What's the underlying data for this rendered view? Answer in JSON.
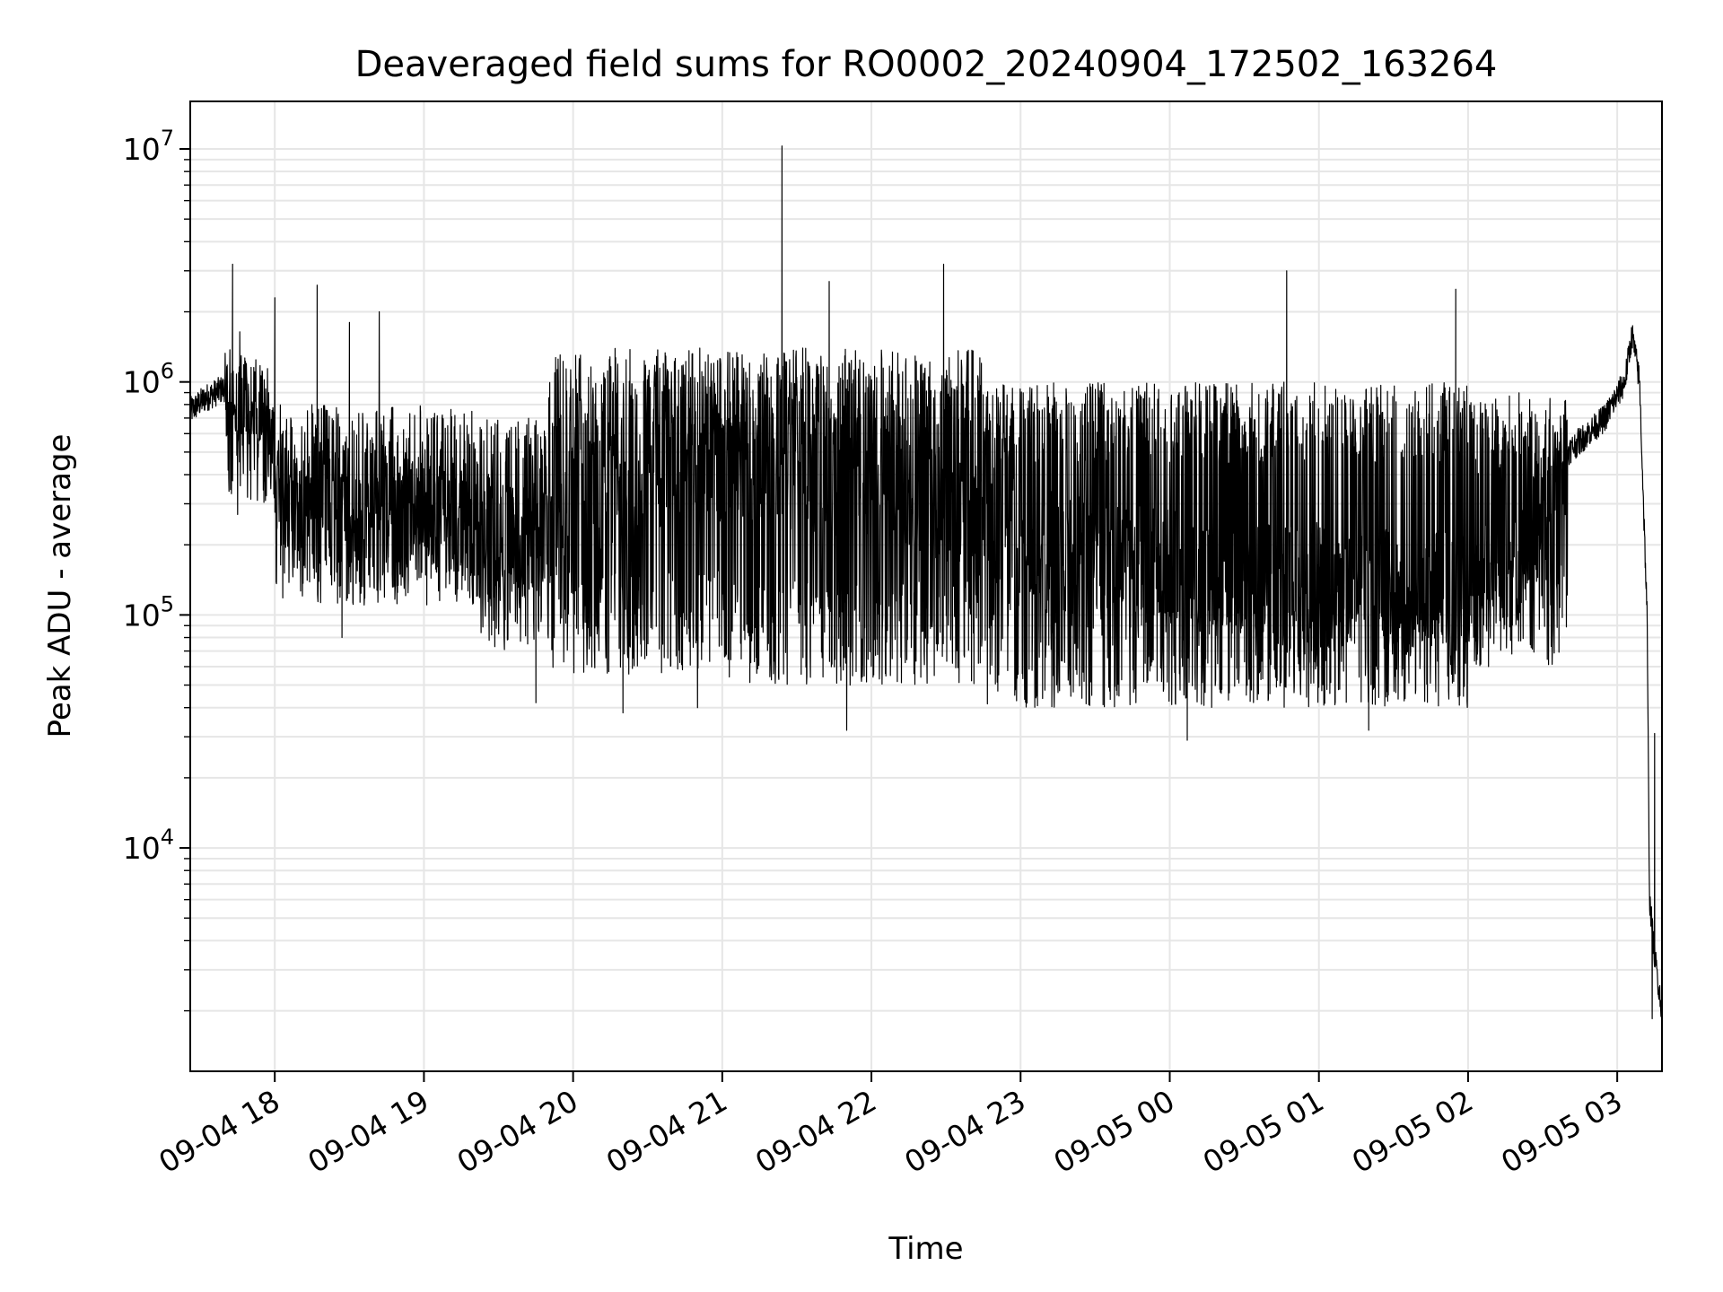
{
  "chart_data": {
    "type": "line",
    "title": "Deaveraged field sums for RO0002_20240904_172502_163264",
    "xlabel": "Time",
    "ylabel": "Peak ADU - average",
    "yscale": "log",
    "ylim": [
      1100,
      16000000
    ],
    "xlim": [
      "09-04 17:26",
      "09-05 03:18"
    ],
    "grid": true,
    "line_color": "#000000",
    "grid_color": "#e6e6e6",
    "x_ticks": [
      {
        "t": "09-04 18:00",
        "label": "09-04 18"
      },
      {
        "t": "09-04 19:00",
        "label": "09-04 19"
      },
      {
        "t": "09-04 20:00",
        "label": "09-04 20"
      },
      {
        "t": "09-04 21:00",
        "label": "09-04 21"
      },
      {
        "t": "09-04 22:00",
        "label": "09-04 22"
      },
      {
        "t": "09-04 23:00",
        "label": "09-04 23"
      },
      {
        "t": "09-05 00:00",
        "label": "09-05 00"
      },
      {
        "t": "09-05 01:00",
        "label": "09-05 01"
      },
      {
        "t": "09-05 02:00",
        "label": "09-05 02"
      },
      {
        "t": "09-05 03:00",
        "label": "09-05 03"
      }
    ],
    "y_ticks": [
      {
        "value": 10000,
        "base": "10",
        "exp": "4"
      },
      {
        "value": 100000,
        "base": "10",
        "exp": "5"
      },
      {
        "value": 1000000,
        "base": "10",
        "exp": "6"
      },
      {
        "value": 10000000,
        "base": "10",
        "exp": "7"
      }
    ],
    "series": [
      {
        "points": [
          [
            "09-04 17:26",
            750000
          ],
          [
            "09-04 17:32",
            850000
          ],
          [
            "09-04 17:38",
            920000
          ],
          [
            "09-04 17:44",
            1000000
          ],
          [
            "09-04 17:50",
            850000
          ],
          [
            "09-04 17:56",
            550000
          ],
          [
            "09-04 18:02",
            350000
          ],
          [
            "09-04 18:10",
            260000
          ],
          [
            "09-04 18:20",
            240000
          ],
          [
            "09-04 18:30",
            230000
          ],
          [
            "09-04 18:45",
            220000
          ],
          [
            "09-04 19:00",
            240000
          ],
          [
            "09-04 19:20",
            210000
          ],
          [
            "09-04 19:40",
            200000
          ],
          [
            "09-04 20:00",
            300000
          ],
          [
            "09-04 20:30",
            400000
          ],
          [
            "09-04 21:00",
            450000
          ],
          [
            "09-04 21:30",
            400000
          ],
          [
            "09-04 22:00",
            380000
          ],
          [
            "09-04 22:30",
            300000
          ],
          [
            "09-04 23:00",
            220000
          ],
          [
            "09-04 23:30",
            180000
          ],
          [
            "09-05 00:00",
            160000
          ],
          [
            "09-05 00:30",
            150000
          ],
          [
            "09-05 01:00",
            140000
          ],
          [
            "09-05 01:30",
            130000
          ],
          [
            "09-05 02:00",
            130000
          ],
          [
            "09-05 02:20",
            160000
          ],
          [
            "09-05 02:40",
            500000
          ],
          [
            "09-05 02:55",
            700000
          ],
          [
            "09-05 03:03",
            1000000
          ],
          [
            "09-05 03:06",
            1600000
          ],
          [
            "09-05 03:09",
            1000000
          ],
          [
            "09-05 03:12",
            100000
          ],
          [
            "09-05 03:13",
            6000
          ],
          [
            "09-05 03:15",
            3500
          ],
          [
            "09-05 03:18",
            2000
          ]
        ],
        "envelope": [
          {
            "t0": "09-04 17:40",
            "t1": "09-04 18:00",
            "hi": 1200000,
            "lo": 300000
          },
          {
            "t0": "09-04 18:00",
            "t1": "09-04 19:20",
            "hi": 800000,
            "lo": 110000
          },
          {
            "t0": "09-04 19:20",
            "t1": "09-04 19:50",
            "hi": 700000,
            "lo": 70000
          },
          {
            "t0": "09-04 19:50",
            "t1": "09-04 21:00",
            "hi": 1400000,
            "lo": 55000
          },
          {
            "t0": "09-04 21:00",
            "t1": "09-04 22:45",
            "hi": 1400000,
            "lo": 50000
          },
          {
            "t0": "09-04 22:45",
            "t1": "09-05 02:00",
            "hi": 1000000,
            "lo": 40000
          },
          {
            "t0": "09-05 02:00",
            "t1": "09-05 02:40",
            "hi": 900000,
            "lo": 60000
          }
        ],
        "spikes": [
          [
            "09-04 17:43",
            3200000
          ],
          [
            "09-04 18:00",
            2300000
          ],
          [
            "09-04 18:17",
            2600000
          ],
          [
            "09-04 18:30",
            1800000
          ],
          [
            "09-04 18:42",
            2000000
          ],
          [
            "09-04 21:24",
            10300000
          ],
          [
            "09-04 21:43",
            2700000
          ],
          [
            "09-04 22:29",
            3200000
          ],
          [
            "09-05 00:47",
            3000000
          ],
          [
            "09-05 01:55",
            2500000
          ],
          [
            "09-05 03:15",
            31000
          ]
        ],
        "dips": [
          [
            "09-04 17:45",
            270000
          ],
          [
            "09-04 18:27",
            80000
          ],
          [
            "09-04 19:45",
            42000
          ],
          [
            "09-04 20:20",
            38000
          ],
          [
            "09-04 20:50",
            40000
          ],
          [
            "09-04 21:50",
            32000
          ],
          [
            "09-05 00:07",
            29000
          ],
          [
            "09-05 01:20",
            32000
          ],
          [
            "09-05 03:14",
            1850
          ]
        ]
      }
    ]
  }
}
